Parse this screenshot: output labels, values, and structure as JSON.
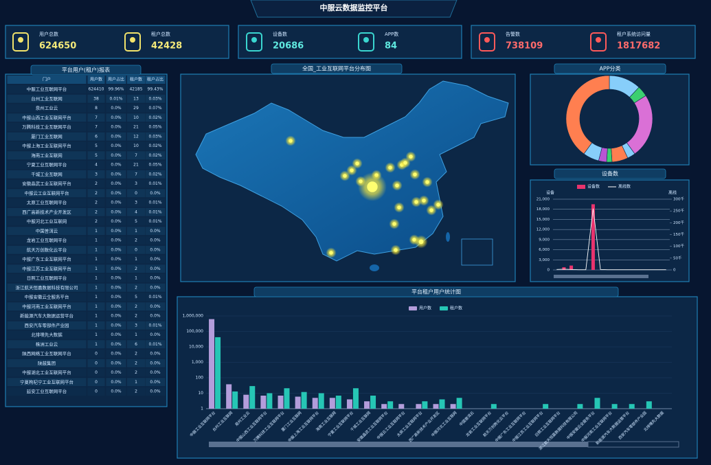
{
  "header": {
    "title": "中服云数据监控平台"
  },
  "kpis": [
    {
      "label": "用户总数",
      "value": 624650
    },
    {
      "label": "租户总数",
      "value": 42428
    },
    {
      "label": "设备数",
      "value": 20686
    },
    {
      "label": "APP数",
      "value": 84
    },
    {
      "label": "告警数",
      "value": 738109
    },
    {
      "label": "租户系统访问量",
      "value": 1817682
    }
  ],
  "table": {
    "title": "平台用户(租户)报表",
    "columns": [
      "门户",
      "用户数",
      "用户占比",
      "租户数",
      "租户占比"
    ],
    "rows": [
      [
        "中服工业互联网平台",
        624410,
        "99.96%",
        42185,
        "99.43%"
      ],
      [
        "台州工业互联网",
        38,
        "0.01%",
        13,
        "0.03%"
      ],
      [
        "泉州工业云",
        8,
        "0.0%",
        29,
        "0.07%"
      ],
      [
        "中服山西工业互联网平台",
        7,
        "0.0%",
        10,
        "0.02%"
      ],
      [
        "万腾科技工业互联网平台",
        7,
        "0.0%",
        21,
        "0.05%"
      ],
      [
        "厦门工业互联网",
        6,
        "0.0%",
        12,
        "0.03%"
      ],
      [
        "中服上海工业互联网平台",
        5,
        "0.0%",
        10,
        "0.02%"
      ],
      [
        "海南工业互联网",
        5,
        "0.0%",
        7,
        "0.02%"
      ],
      [
        "宁夏工业互联网平台",
        4,
        "0.0%",
        21,
        "0.05%"
      ],
      [
        "千城工业互联网",
        3,
        "0.0%",
        7,
        "0.02%"
      ],
      [
        "安徽晶武工业互联网平台",
        2,
        "0.0%",
        3,
        "0.01%"
      ],
      [
        "中服云工业互联网平台",
        2,
        "0.0%",
        0,
        "0.0%"
      ],
      [
        "太原工业互联网平台",
        2,
        "0.0%",
        3,
        "0.01%"
      ],
      [
        "西广高新技术产业开发区",
        2,
        "0.0%",
        4,
        "0.01%"
      ],
      [
        "中服河北工业互联网",
        2,
        "0.0%",
        5,
        "0.01%"
      ],
      [
        "中国普洱云",
        1,
        "0.0%",
        1,
        "0.0%"
      ],
      [
        "龙岩工业互联网平台",
        1,
        "0.0%",
        2,
        "0.0%"
      ],
      [
        "航天万创数化云平台",
        1,
        "0.0%",
        0,
        "0.0%"
      ],
      [
        "中服广东工业互联网平台",
        1,
        "0.0%",
        1,
        "0.0%"
      ],
      [
        "中服江苏工业互联网平台",
        1,
        "0.0%",
        2,
        "0.0%"
      ],
      [
        "日照工业互联网平台",
        1,
        "0.0%",
        1,
        "0.0%"
      ],
      [
        "浙江航天恒嘉数据科技有限公司",
        1,
        "0.0%",
        2,
        "0.0%"
      ],
      [
        "中服安徽云全服务平台",
        1,
        "0.0%",
        5,
        "0.01%"
      ],
      [
        "中服河南工业互联网平台",
        1,
        "0.0%",
        2,
        "0.0%"
      ],
      [
        "新能源汽车大数据运营平台",
        1,
        "0.0%",
        2,
        "0.0%"
      ],
      [
        "西安汽车零部件产业园",
        1,
        "0.0%",
        3,
        "0.01%"
      ],
      [
        "北排嘿先大数据",
        1,
        "0.0%",
        1,
        "0.0%"
      ],
      [
        "株洲工业云",
        1,
        "0.0%",
        6,
        "0.01%"
      ],
      [
        "陕西网络工业互联网平台",
        0,
        "0.0%",
        2,
        "0.0%"
      ],
      [
        "陕鼓集团",
        0,
        "0.0%",
        2,
        "0.0%"
      ],
      [
        "中服湖北工业互联网平台",
        0,
        "0.0%",
        2,
        "0.0%"
      ],
      [
        "宁夏枸杞宁工业互联网平台",
        0,
        "0.0%",
        1,
        "0.0%"
      ],
      [
        "延安工业互联网平台",
        0,
        "0.0%",
        2,
        "0.0%"
      ]
    ]
  },
  "map": {
    "title": "全国_工业互联网平台分布图"
  },
  "chart_data": [
    {
      "type": "pie",
      "title": "APP分类",
      "donut": true,
      "values": [
        12,
        4,
        24,
        3,
        6,
        2,
        3,
        6,
        40
      ],
      "colors": [
        "#87cefa",
        "#3cd070",
        "#da70d6",
        "#87cefa",
        "#ff7f50",
        "#3cd070",
        "#ba55d3",
        "#87cefa",
        "#ff7f50"
      ]
    },
    {
      "type": "bar-line",
      "title": "设备数",
      "ylabel": "设备",
      "y2label": "离线",
      "grid": true,
      "ylim": [
        0,
        21000
      ],
      "yticks": [
        0,
        {
          "value": 3000,
          "label": "3,000"
        },
        {
          "value": 6000,
          "label": "6,000"
        },
        {
          "value": 9000,
          "label": "9,000"
        },
        {
          "value": 12000,
          "label": "12,000"
        },
        {
          "value": 15000,
          "label": "15,000"
        },
        {
          "value": 18000,
          "label": "18,000"
        },
        {
          "value": 21000,
          "label": "21,000"
        }
      ],
      "y2lim": [
        0,
        300
      ],
      "y2ticks": [
        0,
        {
          "value": 50,
          "label": "50千"
        },
        {
          "value": 100,
          "label": "100千"
        },
        {
          "value": 150,
          "label": "150千"
        },
        {
          "value": 200,
          "label": "200千"
        },
        {
          "value": 250,
          "label": "250千"
        },
        {
          "value": 300,
          "label": "300千"
        }
      ],
      "series": [
        {
          "name": "设备数",
          "color": "#e8336d",
          "values": [
            0,
            800,
            1300,
            0,
            0,
            19500,
            0,
            0,
            0,
            0,
            0,
            0,
            0,
            0,
            0,
            0
          ]
        },
        {
          "name": "离线数",
          "color": "#ffffff",
          "axis": "y2",
          "values": [
            2,
            3,
            2,
            1,
            1,
            260,
            2,
            1,
            1,
            1,
            1,
            1,
            1,
            1,
            1,
            1
          ]
        }
      ]
    },
    {
      "type": "bar",
      "title": "平台租户用户统计图",
      "log_scale": true,
      "grid": true,
      "ylim": [
        1,
        1000000
      ],
      "yticks": [
        1,
        10,
        100,
        {
          "value": 1000,
          "label": "1,000"
        },
        {
          "value": 10000,
          "label": "10,000"
        },
        {
          "value": 100000,
          "label": "100,000"
        },
        {
          "value": 1000000,
          "label": "1,000,000"
        }
      ],
      "categories": [
        "中服工业互联网平台",
        "台州工业互联网",
        "泉州工业云",
        "中服山西工业互联网平台",
        "万腾科技工业互联网平台",
        "厦门工业互联网",
        "中服上海工业互联网平台",
        "海南工业互联网",
        "宁夏工业互联网平台",
        "千城工业互联网",
        "安徽晶武工业互联网平台",
        "中服云工业互联网平台",
        "太原工业互联网平台",
        "西广高新技术产业开发区",
        "中服河北工业互联网",
        "中国普洱云",
        "龙岩工业互联网平台",
        "航天万创数化云平台",
        "中服广东工业互联网平台",
        "中服江苏工业互联网平台",
        "日照工业互联网平台",
        "浙江航天恒嘉数据科技有限公司",
        "中服安徽云全服务平台",
        "中服河南工业互联网平台",
        "新能源汽车大数据运营平台",
        "西安汽车零部件产业园",
        "北排嘿先大数据"
      ],
      "series": [
        {
          "name": "用户数",
          "color": "#b39ddb",
          "values": [
            624410,
            38,
            8,
            7,
            7,
            6,
            5,
            5,
            4,
            3,
            2,
            2,
            2,
            2,
            2,
            1,
            1,
            1,
            1,
            1,
            1,
            1,
            1,
            1,
            1,
            1,
            1
          ]
        },
        {
          "name": "租户数",
          "color": "#26c6b5",
          "values": [
            42185,
            13,
            29,
            10,
            21,
            12,
            10,
            7,
            21,
            7,
            3,
            0,
            3,
            4,
            5,
            1,
            2,
            0,
            1,
            2,
            1,
            2,
            5,
            2,
            2,
            3,
            1
          ]
        }
      ]
    }
  ]
}
